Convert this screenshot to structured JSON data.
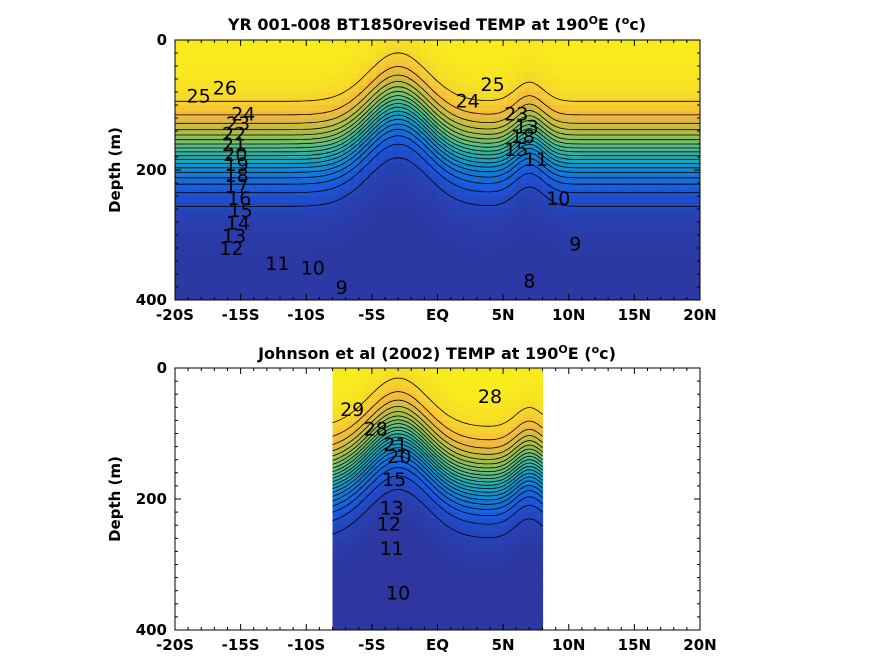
{
  "chart_data": [
    {
      "type": "heatmap",
      "title": "YR 001-008 BT1850revised TEMP at 190",
      "title_super": "O",
      "title_tail": "E (",
      "title_unit_super": "o",
      "title_unit_tail": "c)",
      "ylabel": "Depth (m)",
      "xlabel": "",
      "x_ticks": [
        -20,
        -15,
        -10,
        -5,
        0,
        5,
        10,
        15,
        20
      ],
      "x_tick_labels": [
        "-20S",
        "-15S",
        "-10S",
        "-5S",
        "EQ",
        "5N",
        "10N",
        "15N",
        "20N"
      ],
      "y_ticks": [
        0,
        200,
        400
      ],
      "y_tick_labels": [
        "0",
        "200",
        "400"
      ],
      "xlim": [
        -20,
        20
      ],
      "ylim": [
        400,
        0
      ],
      "data_xlim": [
        -20,
        20
      ],
      "surface_temp_range": [
        26,
        27
      ],
      "colormap": "parula",
      "contour_interval": 1,
      "contour_labels": [
        {
          "text": "26",
          "x": -16.2,
          "y": 75
        },
        {
          "text": "25",
          "x": -18.2,
          "y": 88
        },
        {
          "text": "24",
          "x": -14.8,
          "y": 115
        },
        {
          "text": "23",
          "x": -15.2,
          "y": 130
        },
        {
          "text": "22",
          "x": -15.5,
          "y": 146
        },
        {
          "text": "21",
          "x": -15.5,
          "y": 162
        },
        {
          "text": "20",
          "x": -15.4,
          "y": 178
        },
        {
          "text": "19",
          "x": -15.3,
          "y": 193
        },
        {
          "text": "18",
          "x": -15.3,
          "y": 210
        },
        {
          "text": "17",
          "x": -15.3,
          "y": 226
        },
        {
          "text": "16",
          "x": -15.1,
          "y": 245
        },
        {
          "text": "15",
          "x": -15.0,
          "y": 264
        },
        {
          "text": "14",
          "x": -15.2,
          "y": 283
        },
        {
          "text": "13",
          "x": -15.5,
          "y": 303
        },
        {
          "text": "12",
          "x": -15.7,
          "y": 322
        },
        {
          "text": "11",
          "x": -12.2,
          "y": 345
        },
        {
          "text": "10",
          "x": -9.5,
          "y": 352
        },
        {
          "text": "9",
          "x": -7.3,
          "y": 382
        },
        {
          "text": "25",
          "x": 4.2,
          "y": 70
        },
        {
          "text": "24",
          "x": 2.3,
          "y": 95
        },
        {
          "text": "23",
          "x": 6.0,
          "y": 115
        },
        {
          "text": "13",
          "x": 6.8,
          "y": 135
        },
        {
          "text": "18",
          "x": 6.5,
          "y": 150
        },
        {
          "text": "15",
          "x": 6.0,
          "y": 170
        },
        {
          "text": "11",
          "x": 7.5,
          "y": 185
        },
        {
          "text": "10",
          "x": 9.2,
          "y": 245
        },
        {
          "text": "9",
          "x": 10.5,
          "y": 315
        },
        {
          "text": "8",
          "x": 7.0,
          "y": 372
        }
      ]
    },
    {
      "type": "heatmap",
      "title": "Johnson et al (2002) TEMP at 190",
      "title_super": "O",
      "title_tail": "E (",
      "title_unit_super": "o",
      "title_unit_tail": "c)",
      "ylabel": "Depth (m)",
      "xlabel": "",
      "x_ticks": [
        -20,
        -15,
        -10,
        -5,
        0,
        5,
        10,
        15,
        20
      ],
      "x_tick_labels": [
        "-20S",
        "-15S",
        "-10S",
        "-5S",
        "EQ",
        "5N",
        "10N",
        "15N",
        "20N"
      ],
      "y_ticks": [
        0,
        200,
        400
      ],
      "y_tick_labels": [
        "0",
        "200",
        "400"
      ],
      "xlim": [
        -20,
        20
      ],
      "ylim": [
        400,
        0
      ],
      "data_xlim": [
        -8,
        8
      ],
      "surface_temp_range": [
        28,
        30
      ],
      "colormap": "parula",
      "contour_interval": 1,
      "contour_labels": [
        {
          "text": "29",
          "x": -6.5,
          "y": 65
        },
        {
          "text": "28",
          "x": -4.7,
          "y": 95
        },
        {
          "text": "28",
          "x": 4.0,
          "y": 45
        },
        {
          "text": "21",
          "x": -3.2,
          "y": 118
        },
        {
          "text": "20",
          "x": -2.9,
          "y": 137
        },
        {
          "text": "15",
          "x": -3.3,
          "y": 172
        },
        {
          "text": "13",
          "x": -3.5,
          "y": 215
        },
        {
          "text": "12",
          "x": -3.7,
          "y": 240
        },
        {
          "text": "11",
          "x": -3.5,
          "y": 277
        },
        {
          "text": "10",
          "x": -3.0,
          "y": 345
        }
      ]
    }
  ]
}
